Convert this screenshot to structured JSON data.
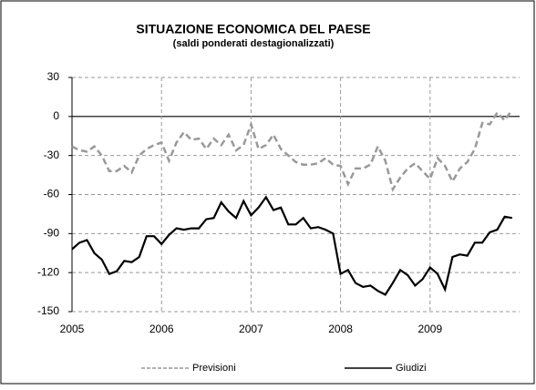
{
  "chart_data": {
    "type": "line",
    "title": "SITUAZIONE ECONOMICA DEL PAESE",
    "subtitle": "(saldi ponderati destagionalizzati)",
    "categories": [
      "2005",
      null,
      null,
      null,
      null,
      null,
      null,
      null,
      null,
      null,
      null,
      null,
      "2006",
      null,
      null,
      null,
      null,
      null,
      null,
      null,
      null,
      null,
      null,
      null,
      "2007",
      null,
      null,
      null,
      null,
      null,
      null,
      null,
      null,
      null,
      null,
      null,
      "2008",
      null,
      null,
      null,
      null,
      null,
      null,
      null,
      null,
      null,
      null,
      null,
      "2009",
      null,
      null,
      null,
      null,
      null,
      null,
      null,
      null,
      null,
      null,
      null
    ],
    "series": [
      {
        "name": "Previsioni",
        "color": "#999999",
        "style": "dashed",
        "values": [
          -23,
          -26,
          -27,
          -23,
          -30,
          -42,
          -42,
          -38,
          -43,
          -30,
          -25,
          -22,
          -20,
          -34,
          -20,
          -12,
          -18,
          -17,
          -25,
          -17,
          -22,
          -14,
          -26,
          -22,
          -6,
          -25,
          -22,
          -14,
          -25,
          -30,
          -35,
          -37,
          -37,
          -36,
          -32,
          -37,
          -38,
          -52,
          -40,
          -40,
          -37,
          -23,
          -34,
          -56,
          -47,
          -40,
          -36,
          -42,
          -48,
          -32,
          -38,
          -50,
          -40,
          -35,
          -25,
          -5,
          -6,
          3,
          -3,
          5
        ]
      },
      {
        "name": "Giudizi",
        "color": "#000000",
        "style": "solid",
        "values": [
          -102,
          -97,
          -95,
          -105,
          -110,
          -121,
          -119,
          -111,
          -112,
          -108,
          -92,
          -92,
          -98,
          -91,
          -86,
          -87,
          -86,
          -86,
          -79,
          -78,
          -66,
          -73,
          -78,
          -65,
          -76,
          -70,
          -62,
          -72,
          -70,
          -83,
          -83,
          -78,
          -86,
          -85,
          -87,
          -90,
          -121,
          -118,
          -128,
          -131,
          -130,
          -134,
          -137,
          -128,
          -118,
          -122,
          -130,
          -125,
          -116,
          -121,
          -133,
          -108,
          -106,
          -107,
          -97,
          -97,
          -89,
          -87,
          -77,
          -78
        ]
      }
    ],
    "ylim": [
      -150,
      30
    ],
    "yticks": [
      -150,
      -120,
      -90,
      -60,
      -30,
      0,
      30
    ],
    "grid": true,
    "legend": "bottom"
  }
}
